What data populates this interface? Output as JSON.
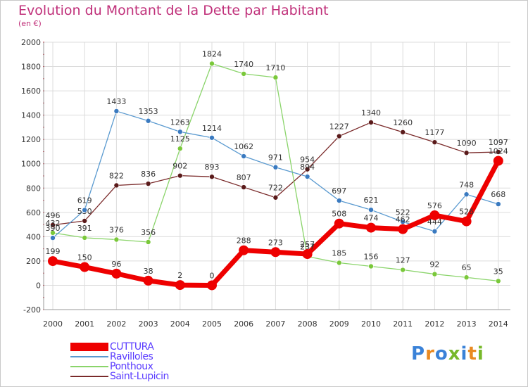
{
  "title": "Evolution du Montant de la Dette par Habitant",
  "subtitle": "(en €)",
  "brand": {
    "text": "Proxiti",
    "colors": [
      "#3a82d8",
      "#e98a22",
      "#3a82d8",
      "#77b82a",
      "#3a82d8",
      "#e98a22",
      "#77b82a"
    ]
  },
  "chart_data": {
    "type": "line",
    "x": [
      "2000",
      "2001",
      "2002",
      "2003",
      "2004",
      "2005",
      "2006",
      "2007",
      "2008",
      "2009",
      "2010",
      "2011",
      "2012",
      "2013",
      "2014"
    ],
    "ylim": [
      -200,
      2000
    ],
    "yticks": [
      -200,
      0,
      200,
      400,
      600,
      800,
      1000,
      1200,
      1400,
      1600,
      1800,
      2000
    ],
    "grid": true,
    "legend_position": "bottom-left",
    "series": [
      {
        "name": "Saint-Lupicin",
        "color": "#7a2a2a",
        "marker": "#5a1a1a",
        "width": 1.3,
        "values": [
          496,
          530,
          822,
          836,
          902,
          893,
          807,
          722,
          954,
          1227,
          1340,
          1260,
          1177,
          1090,
          1097
        ],
        "labels": [
          "496",
          "530",
          "822",
          "836",
          "902",
          "893",
          "807",
          "722",
          "954",
          "1227",
          "1340",
          "1260",
          "1177",
          "1090",
          "1097"
        ]
      },
      {
        "name": "Ponthoux",
        "color": "#8ad46a",
        "marker": "#7ac83a",
        "width": 1.3,
        "values": [
          432,
          391,
          376,
          356,
          1125,
          1824,
          1740,
          1710,
          237,
          185,
          156,
          127,
          92,
          65,
          35
        ],
        "labels": [
          "432",
          "391",
          "376",
          "356",
          "1125",
          "1824",
          "1740",
          "1710",
          "237",
          "185",
          "156",
          "127",
          "92",
          "65",
          "35"
        ]
      },
      {
        "name": "Ravilloles",
        "color": "#5a9ad0",
        "marker": "#3a7ac0",
        "width": 1.3,
        "values": [
          390,
          619,
          1433,
          1353,
          1263,
          1214,
          1062,
          971,
          894,
          697,
          621,
          522,
          444,
          748,
          668
        ],
        "labels": [
          "390",
          "619",
          "1433",
          "1353",
          "1263",
          "1214",
          "1062",
          "971",
          "894",
          "697",
          "621",
          "522",
          "444",
          "748",
          "668"
        ]
      },
      {
        "name": "CUTTURA",
        "color": "#ee0000",
        "marker": "#ee0000",
        "width": 7,
        "values": [
          199,
          150,
          96,
          38,
          2,
          0,
          288,
          273,
          257,
          508,
          474,
          462,
          576,
          526,
          1024
        ],
        "labels": [
          "199",
          "150",
          "96",
          "38",
          "2",
          "0",
          "288",
          "273",
          "257",
          "508",
          "474",
          "462",
          "576",
          "526",
          "1024"
        ]
      }
    ]
  },
  "legend": [
    {
      "name": "CUTTURA",
      "color": "#ee0000",
      "thick": true
    },
    {
      "name": "Ravilloles",
      "color": "#5a9ad0",
      "thick": false
    },
    {
      "name": "Ponthoux",
      "color": "#8ad46a",
      "thick": false
    },
    {
      "name": "Saint-Lupicin",
      "color": "#7a2a2a",
      "thick": false
    }
  ]
}
